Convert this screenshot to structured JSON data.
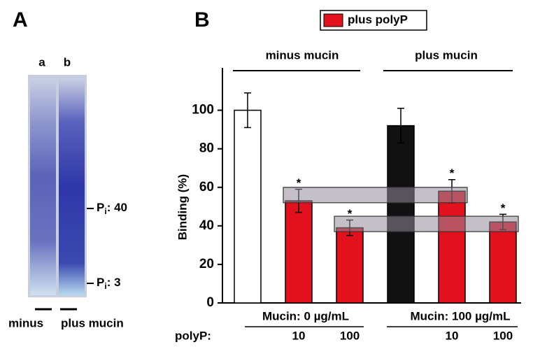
{
  "gel": {
    "panel_label": "A",
    "lane_labels": [
      "a",
      "b"
    ],
    "markers": [
      {
        "symbol": "P",
        "sub": "i",
        "text": ": 40"
      },
      {
        "symbol": "P",
        "sub": "i",
        "text": ":   3"
      }
    ],
    "bottom_labels": [
      "minus",
      "plus mucin"
    ]
  },
  "chart_data": {
    "type": "bar",
    "panel_label": "B",
    "y_label": "Binding (%)",
    "legend": {
      "label": "plus polyP",
      "color": "#e3101d"
    },
    "group_labels": [
      "minus mucin",
      "plus mucin"
    ],
    "mucin_labels": [
      "Mucin: 0 µg/mL",
      "Mucin: 100 µg/mL"
    ],
    "polyP_label": "polyP:",
    "categories": [
      null,
      "10",
      "100",
      null,
      "10",
      "100"
    ],
    "values": [
      100,
      53,
      39,
      92,
      58,
      42
    ],
    "errors": [
      9,
      6,
      4,
      9,
      6,
      4
    ],
    "colors": [
      "#ffffff",
      "#e3101d",
      "#e3101d",
      "#111111",
      "#e3101d",
      "#e3101d"
    ],
    "significance": [
      null,
      "*",
      "*",
      null,
      "*",
      "*"
    ],
    "bands": [
      [
        52,
        60
      ],
      [
        37,
        45
      ]
    ],
    "ylim": [
      0,
      122
    ],
    "yticks": [
      0,
      20,
      40,
      60,
      80,
      100
    ]
  }
}
